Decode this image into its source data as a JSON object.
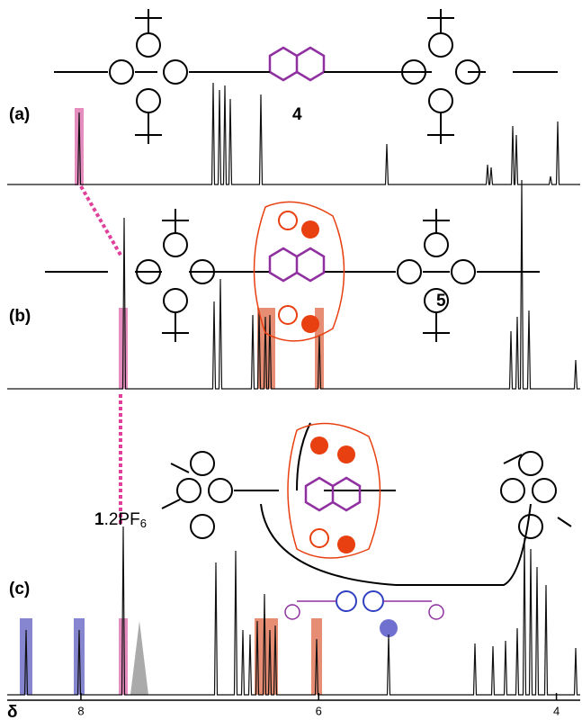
{
  "chart_data": {
    "type": "nmr",
    "panels": [
      {
        "label": "(a)",
        "compound": "4"
      },
      {
        "label": "(b)",
        "compound": "5"
      },
      {
        "label": "(c)",
        "compound": {
          "bold": "1",
          "text": ".2PF",
          "sub": "6"
        }
      }
    ],
    "xlabel": "δ",
    "xlim": [
      8.62,
      3.8
    ],
    "xticks": [
      8,
      6,
      4
    ]
  }
}
